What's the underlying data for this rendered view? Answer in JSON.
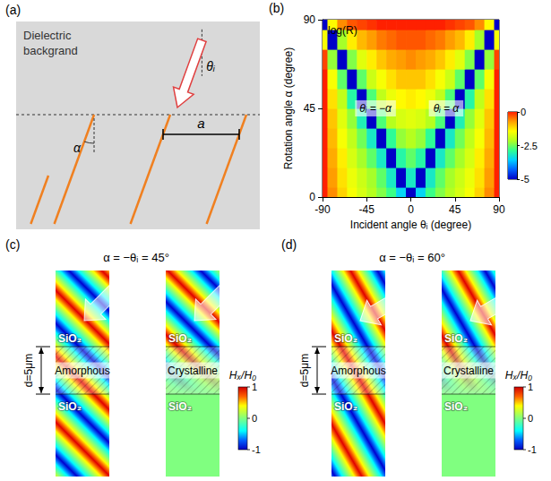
{
  "chart_data": {
    "type": "heatmap",
    "panel_label": "(b)",
    "x": [
      -90,
      -80,
      -70,
      -60,
      -50,
      -40,
      -30,
      -20,
      -10,
      0,
      10,
      20,
      30,
      40,
      50,
      60,
      70,
      80,
      90
    ],
    "y": [
      0,
      10,
      20,
      30,
      40,
      50,
      60,
      70,
      80,
      90
    ],
    "values": [
      [
        0,
        -0.6,
        -1.1,
        -1.5,
        -1.8,
        -2.1,
        -2.4,
        -2.8,
        -3.5,
        -5,
        -3.5,
        -2.8,
        -2.4,
        -2.1,
        -1.8,
        -1.5,
        -1.1,
        -0.6,
        0
      ],
      [
        0,
        -0.7,
        -1.2,
        -1.6,
        -1.9,
        -2.2,
        -2.6,
        -3.2,
        -5,
        -3.2,
        -5,
        -3.2,
        -2.6,
        -2.2,
        -1.9,
        -1.6,
        -1.2,
        -0.7,
        0
      ],
      [
        0,
        -0.8,
        -1.3,
        -1.8,
        -2.2,
        -2.6,
        -3.2,
        -5,
        -3,
        -2.6,
        -3,
        -5,
        -3.2,
        -2.6,
        -2.2,
        -1.8,
        -1.3,
        -0.8,
        0
      ],
      [
        0,
        -0.9,
        -1.5,
        -2,
        -2.5,
        -3.2,
        -5,
        -2.9,
        -2.3,
        -2.1,
        -2.3,
        -2.9,
        -5,
        -3.2,
        -2.5,
        -2,
        -1.5,
        -0.9,
        0
      ],
      [
        0,
        -1,
        -1.7,
        -2.3,
        -3.1,
        -5,
        -2.7,
        -2.1,
        -1.8,
        -1.7,
        -1.8,
        -2.1,
        -2.7,
        -5,
        -3.1,
        -2.3,
        -1.7,
        -1,
        0
      ],
      [
        0,
        -1.2,
        -2,
        -3,
        -5,
        -2.7,
        -2,
        -1.6,
        -1.4,
        -1.3,
        -1.4,
        -1.6,
        -2,
        -2.7,
        -5,
        -3,
        -2,
        -1.2,
        0
      ],
      [
        0,
        -1.5,
        -2.6,
        -5,
        -2.6,
        -1.9,
        -1.5,
        -1.2,
        -1,
        -1,
        -1,
        -1.2,
        -1.5,
        -1.9,
        -2.6,
        -5,
        -2.6,
        -1.5,
        0
      ],
      [
        -0.2,
        -2.3,
        -5,
        -2.4,
        -1.7,
        -1.3,
        -1,
        -0.8,
        -0.7,
        -0.6,
        -0.7,
        -0.8,
        -1,
        -1.3,
        -1.7,
        -2.4,
        -5,
        -2.3,
        -0.2
      ],
      [
        -1.5,
        -5,
        -2.2,
        -1.3,
        -0.9,
        -0.7,
        -0.5,
        -0.4,
        -0.3,
        -0.3,
        -0.3,
        -0.4,
        -0.5,
        -0.7,
        -0.9,
        -1.3,
        -2.2,
        -5,
        -1.5
      ],
      [
        -5,
        -1.4,
        -0.6,
        -0.3,
        -0.2,
        -0.1,
        0,
        0,
        0,
        0,
        0,
        0,
        0,
        -0.1,
        -0.2,
        -0.3,
        -0.6,
        -1.4,
        -5
      ]
    ],
    "xlabel": "Incident angle θᵢ (degree)",
    "ylabel": "Rotation angle α (degree)",
    "xlim": [
      -90,
      90
    ],
    "xticks": [
      -90,
      -45,
      0,
      45,
      90
    ],
    "ylim": [
      0,
      90
    ],
    "yticks": [
      0,
      45,
      90
    ],
    "colorbar_title": "log(R)",
    "colorbar_range": [
      -5,
      0
    ],
    "colorbar_ticks": [
      0,
      -2.5,
      -5
    ],
    "annotations": [
      "θᵢ = −α",
      "θᵢ = α"
    ]
  },
  "diagrams": [
    {
      "panel_label": "(a)",
      "background_text": [
        "Dielectric",
        "backgrand"
      ],
      "incident_label": "θᵢ",
      "rotation_label": "α",
      "period_label": "a"
    },
    {
      "panel_label": "(c)",
      "title": "α = −θᵢ = 45°",
      "angle": 45,
      "thickness_label": "d=5μm",
      "columns": [
        {
          "top": "SiO₂",
          "middle": "Amorphous",
          "bottom": "SiO₂",
          "transmits": true
        },
        {
          "top": "SiO₂",
          "middle": "Crystalline",
          "bottom": "SiO₂",
          "transmits": false
        }
      ],
      "colorbar": {
        "label": "Hₓ/H₀",
        "range": [
          -1,
          1
        ],
        "ticks": [
          1,
          0,
          -1
        ]
      }
    },
    {
      "panel_label": "(d)",
      "title": "α = −θᵢ = 60°",
      "angle": 60,
      "thickness_label": "d=5μm",
      "columns": [
        {
          "top": "SiO₂",
          "middle": "Amorphous",
          "bottom": "SiO₂",
          "transmits": true
        },
        {
          "top": "SiO₂",
          "middle": "Crystalline",
          "bottom": "SiO₂",
          "transmits": false
        }
      ],
      "colorbar": {
        "label": "Hₓ/H₀",
        "range": [
          -1,
          1
        ],
        "ticks": [
          1,
          0,
          -1
        ]
      }
    }
  ]
}
